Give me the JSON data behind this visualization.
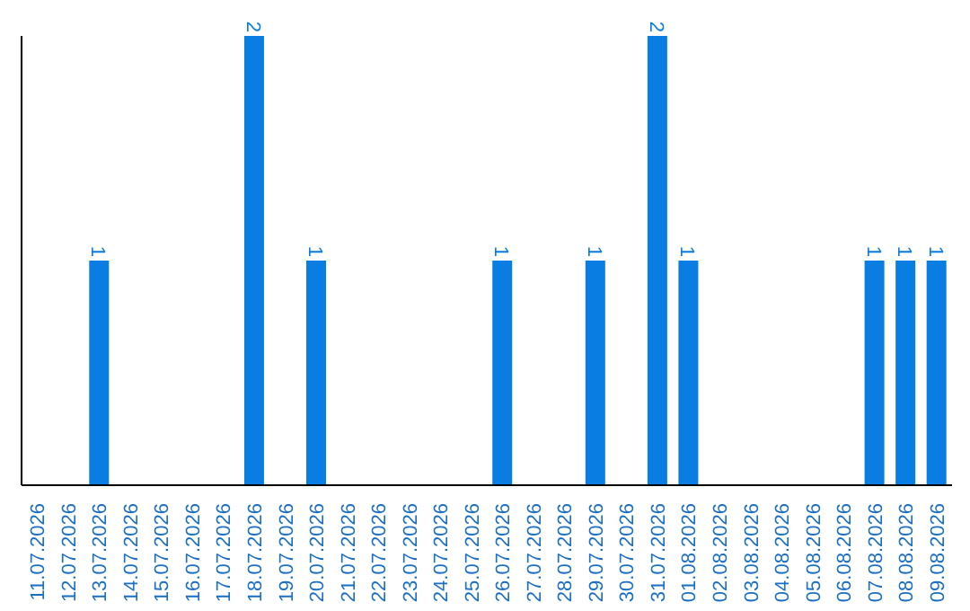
{
  "chart_data": {
    "type": "bar",
    "categories": [
      "11.07.2026",
      "12.07.2026",
      "13.07.2026",
      "14.07.2026",
      "15.07.2026",
      "16.07.2026",
      "17.07.2026",
      "18.07.2026",
      "19.07.2026",
      "20.07.2026",
      "21.07.2026",
      "22.07.2026",
      "23.07.2026",
      "24.07.2026",
      "25.07.2026",
      "26.07.2026",
      "27.07.2026",
      "28.07.2026",
      "29.07.2026",
      "30.07.2026",
      "31.07.2026",
      "01.08.2026",
      "02.08.2026",
      "03.08.2026",
      "04.08.2026",
      "05.08.2026",
      "06.08.2026",
      "07.08.2026",
      "08.08.2026",
      "09.08.2026"
    ],
    "values": [
      0,
      0,
      1,
      0,
      0,
      0,
      0,
      2,
      0,
      1,
      0,
      0,
      0,
      0,
      0,
      1,
      0,
      0,
      1,
      0,
      2,
      1,
      0,
      0,
      0,
      0,
      0,
      1,
      1,
      1
    ],
    "value_labels": [
      null,
      null,
      "1",
      null,
      null,
      null,
      null,
      "2",
      null,
      "1",
      null,
      null,
      null,
      null,
      null,
      "1",
      null,
      null,
      "1",
      null,
      "2",
      "1",
      null,
      null,
      null,
      null,
      null,
      "1",
      "1",
      "1"
    ],
    "color": "#0a7de3",
    "grid": false,
    "legend": false
  }
}
